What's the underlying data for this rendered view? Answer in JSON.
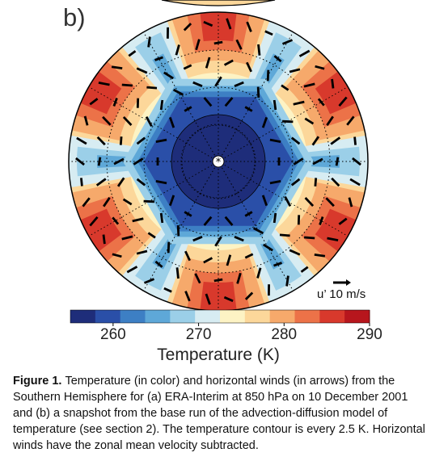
{
  "figure": {
    "panel_label": "b)",
    "wind_scale_label": "u’ 10 m/s",
    "colorbar": {
      "ticks": [
        "260",
        "270",
        "280",
        "290"
      ],
      "label": "Temperature (K)",
      "range": [
        255,
        290
      ],
      "colors": [
        "#1e2d7a",
        "#2a4fa8",
        "#3d7fc4",
        "#5ea8d8",
        "#9bcfe8",
        "#d7ecf2",
        "#fdf3c4",
        "#fcd79a",
        "#f6a96b",
        "#ec7248",
        "#d8392c",
        "#b7161d"
      ]
    }
  },
  "caption": {
    "label": "Figure 1.",
    "text": "Temperature (in color) and horizontal winds (in arrows) from the Southern Hemisphere for (a) ERA-Interim at 850 hPa on 10 December 2001 and (b) a snapshot from the base run of the advection-diffusion model of temperature (see section 2). The temperature contour is every 2.5 K. Horizontal winds have the zonal mean velocity subtracted."
  }
}
